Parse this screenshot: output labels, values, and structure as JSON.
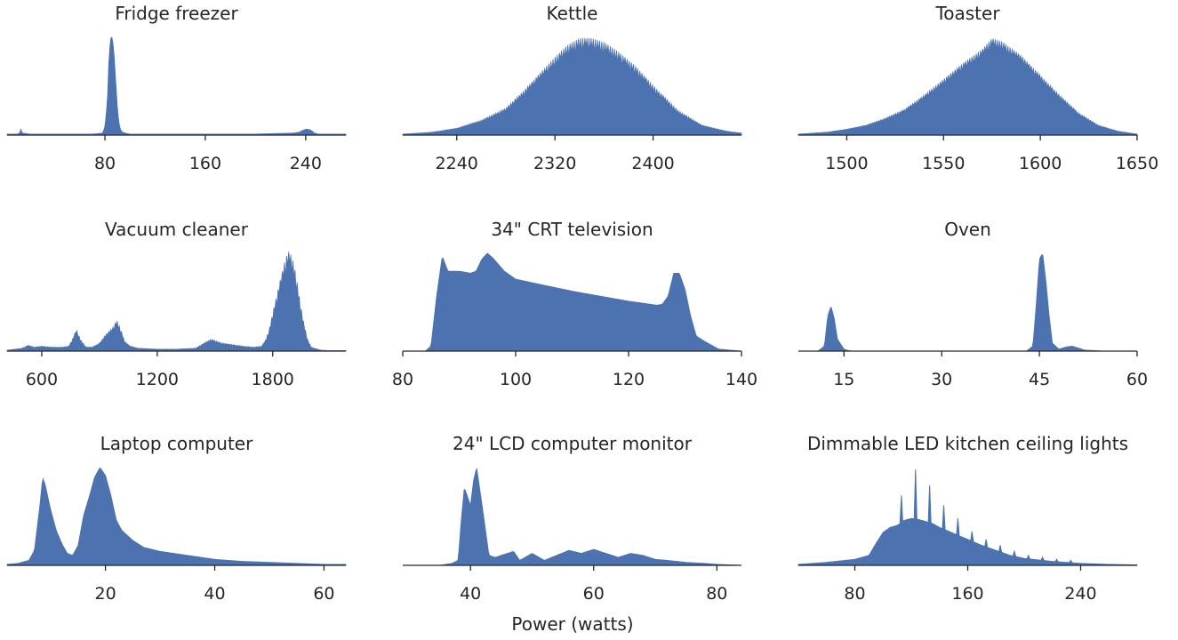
{
  "figure": {
    "xlabel": "Power (watts)"
  },
  "colors": {
    "fill": "#4c72b0",
    "axis": "#262626",
    "text": "#262626",
    "background": "#ffffff"
  },
  "chart_data": [
    {
      "type": "area",
      "title": "Fridge freezer",
      "xlim": [
        2,
        272
      ],
      "xticks": [
        80,
        160,
        240
      ],
      "ylim": [
        0,
        1.05
      ],
      "x": [
        2,
        10,
        12,
        13,
        14,
        20,
        40,
        70,
        78,
        80,
        82,
        83,
        84,
        85,
        86,
        87,
        88,
        89,
        90,
        91,
        92,
        93,
        94,
        96,
        98,
        100,
        110,
        130,
        160,
        200,
        230,
        235,
        238,
        241,
        244,
        247,
        250,
        260,
        272
      ],
      "y": [
        0.01,
        0.01,
        0.02,
        0.06,
        0.02,
        0.01,
        0.01,
        0.01,
        0.02,
        0.08,
        0.35,
        0.7,
        0.9,
        1.0,
        0.96,
        0.85,
        0.65,
        0.45,
        0.25,
        0.13,
        0.07,
        0.04,
        0.03,
        0.02,
        0.015,
        0.01,
        0.01,
        0.01,
        0.01,
        0.01,
        0.02,
        0.03,
        0.05,
        0.06,
        0.05,
        0.02,
        0.01,
        0.01,
        0.01
      ]
    },
    {
      "type": "area",
      "title": "Kettle",
      "xlim": [
        2196,
        2472
      ],
      "xticks": [
        2240,
        2320,
        2400
      ],
      "ylim": [
        0,
        1.05
      ],
      "x": [
        2196,
        2220,
        2240,
        2260,
        2280,
        2295,
        2310,
        2320,
        2330,
        2340,
        2350,
        2360,
        2370,
        2385,
        2400,
        2420,
        2440,
        2460,
        2472
      ],
      "y": [
        0.01,
        0.03,
        0.07,
        0.15,
        0.27,
        0.45,
        0.65,
        0.78,
        0.9,
        0.97,
        0.97,
        0.93,
        0.85,
        0.7,
        0.5,
        0.25,
        0.1,
        0.04,
        0.02
      ]
    },
    {
      "type": "area",
      "title": "Toaster",
      "xlim": [
        1475,
        1650
      ],
      "xticks": [
        1500,
        1550,
        1600,
        1650
      ],
      "ylim": [
        0,
        1.05
      ],
      "x": [
        1475,
        1490,
        1500,
        1510,
        1520,
        1530,
        1540,
        1550,
        1560,
        1570,
        1575,
        1580,
        1590,
        1600,
        1610,
        1620,
        1630,
        1640,
        1650
      ],
      "y": [
        0.01,
        0.03,
        0.06,
        0.1,
        0.17,
        0.26,
        0.4,
        0.56,
        0.72,
        0.86,
        0.97,
        0.94,
        0.8,
        0.6,
        0.4,
        0.22,
        0.1,
        0.04,
        0.01
      ]
    },
    {
      "type": "area",
      "title": "Vacuum cleaner",
      "xlim": [
        420,
        2180
      ],
      "xticks": [
        600,
        1200,
        1800
      ],
      "ylim": [
        0,
        1.05
      ],
      "x": [
        420,
        500,
        530,
        560,
        600,
        650,
        700,
        740,
        760,
        780,
        800,
        830,
        860,
        900,
        930,
        950,
        970,
        990,
        1010,
        1030,
        1060,
        1100,
        1200,
        1300,
        1400,
        1450,
        1480,
        1510,
        1540,
        1580,
        1650,
        1700,
        1740,
        1760,
        1780,
        1800,
        1820,
        1840,
        1860,
        1880,
        1900,
        1920,
        1940,
        1960,
        1980,
        2000,
        2050,
        2100,
        2180
      ],
      "y": [
        0.01,
        0.03,
        0.06,
        0.04,
        0.05,
        0.04,
        0.04,
        0.05,
        0.12,
        0.22,
        0.12,
        0.04,
        0.04,
        0.08,
        0.16,
        0.2,
        0.24,
        0.31,
        0.22,
        0.1,
        0.05,
        0.03,
        0.02,
        0.02,
        0.03,
        0.09,
        0.12,
        0.1,
        0.08,
        0.07,
        0.05,
        0.04,
        0.05,
        0.1,
        0.2,
        0.38,
        0.55,
        0.72,
        0.88,
        1.0,
        0.95,
        0.78,
        0.52,
        0.3,
        0.12,
        0.04,
        0.01,
        0.005,
        0.005
      ]
    },
    {
      "type": "area",
      "title": "34\" CRT television",
      "xlim": [
        80,
        140
      ],
      "xticks": [
        80,
        100,
        120,
        140
      ],
      "ylim": [
        0,
        1.05
      ],
      "x": [
        80,
        84,
        85,
        86,
        87,
        88,
        90,
        92,
        93,
        94,
        95,
        96,
        98,
        100,
        105,
        110,
        115,
        120,
        125,
        126,
        127,
        128,
        129,
        130,
        131,
        132,
        134,
        136,
        140
      ],
      "y": [
        0,
        0,
        0.05,
        0.55,
        0.95,
        0.8,
        0.8,
        0.78,
        0.8,
        0.92,
        0.98,
        0.93,
        0.8,
        0.72,
        0.66,
        0.6,
        0.55,
        0.5,
        0.46,
        0.47,
        0.55,
        0.78,
        0.78,
        0.62,
        0.35,
        0.15,
        0.08,
        0.02,
        0
      ]
    },
    {
      "type": "area",
      "title": "Oven",
      "xlim": [
        8,
        60
      ],
      "xticks": [
        15,
        30,
        45,
        60
      ],
      "ylim": [
        0,
        1.05
      ],
      "x": [
        8,
        11,
        12,
        12.5,
        13,
        13.5,
        14,
        15,
        16,
        17,
        20,
        30,
        40,
        43,
        44,
        44.5,
        45,
        45.5,
        46,
        46.5,
        47,
        48,
        49,
        50,
        51,
        52,
        55,
        60
      ],
      "y": [
        0,
        0,
        0.05,
        0.35,
        0.45,
        0.33,
        0.12,
        0.02,
        0,
        0,
        0,
        0,
        0,
        0,
        0.05,
        0.45,
        0.92,
        0.98,
        0.7,
        0.35,
        0.08,
        0.02,
        0.04,
        0.05,
        0.03,
        0.01,
        0,
        0
      ]
    },
    {
      "type": "area",
      "title": "Laptop computer",
      "xlim": [
        2,
        64
      ],
      "xticks": [
        20,
        40,
        60
      ],
      "ylim": [
        0,
        1.05
      ],
      "x": [
        2,
        4,
        6,
        7,
        8,
        8.5,
        9,
        10,
        11,
        12,
        13,
        14,
        15,
        16,
        17,
        18,
        19,
        20,
        21,
        22,
        23,
        25,
        27,
        30,
        35,
        40,
        45,
        50,
        55,
        60,
        64
      ],
      "y": [
        0.01,
        0.02,
        0.05,
        0.15,
        0.6,
        0.88,
        0.8,
        0.55,
        0.35,
        0.22,
        0.12,
        0.1,
        0.2,
        0.5,
        0.68,
        0.88,
        0.98,
        0.9,
        0.7,
        0.45,
        0.35,
        0.25,
        0.18,
        0.14,
        0.1,
        0.06,
        0.04,
        0.03,
        0.02,
        0.01,
        0.01
      ]
    },
    {
      "type": "area",
      "title": "24\" LCD computer monitor",
      "xlim": [
        29,
        84
      ],
      "xticks": [
        40,
        60,
        80
      ],
      "ylim": [
        0,
        1.05
      ],
      "x": [
        29,
        35,
        37,
        38,
        38.5,
        39,
        40,
        40.5,
        41,
        42,
        43,
        44,
        45,
        46,
        47,
        48,
        50,
        52,
        54,
        56,
        58,
        60,
        62,
        64,
        66,
        68,
        70,
        72,
        75,
        78,
        80,
        84
      ],
      "y": [
        0,
        0,
        0.02,
        0.05,
        0.45,
        0.78,
        0.6,
        0.85,
        0.98,
        0.55,
        0.1,
        0.08,
        0.1,
        0.12,
        0.14,
        0.05,
        0.12,
        0.05,
        0.1,
        0.15,
        0.12,
        0.16,
        0.12,
        0.08,
        0.12,
        0.1,
        0.06,
        0.05,
        0.03,
        0.02,
        0.01,
        0
      ]
    },
    {
      "type": "area",
      "title": "Dimmable LED kitchen ceiling lights",
      "xlim": [
        40,
        280
      ],
      "xticks": [
        80,
        160,
        240
      ],
      "ylim": [
        0,
        1.05
      ],
      "x": [
        40,
        60,
        80,
        90,
        95,
        100,
        105,
        110,
        115,
        120,
        125,
        130,
        135,
        140,
        150,
        160,
        170,
        180,
        190,
        200,
        220,
        240,
        260,
        280
      ],
      "y": [
        0.01,
        0.03,
        0.06,
        0.1,
        0.22,
        0.33,
        0.38,
        0.4,
        0.45,
        0.47,
        0.46,
        0.44,
        0.42,
        0.38,
        0.32,
        0.26,
        0.2,
        0.15,
        0.1,
        0.07,
        0.04,
        0.02,
        0.01,
        0.005
      ],
      "spikes": [
        {
          "x": 113,
          "y": 0.7
        },
        {
          "x": 123,
          "y": 0.96
        },
        {
          "x": 133,
          "y": 0.8
        },
        {
          "x": 143,
          "y": 0.6
        },
        {
          "x": 153,
          "y": 0.47
        },
        {
          "x": 163,
          "y": 0.34
        },
        {
          "x": 173,
          "y": 0.26
        },
        {
          "x": 183,
          "y": 0.2
        },
        {
          "x": 193,
          "y": 0.14
        },
        {
          "x": 203,
          "y": 0.1
        },
        {
          "x": 213,
          "y": 0.08
        },
        {
          "x": 223,
          "y": 0.06
        },
        {
          "x": 233,
          "y": 0.05
        }
      ]
    }
  ]
}
